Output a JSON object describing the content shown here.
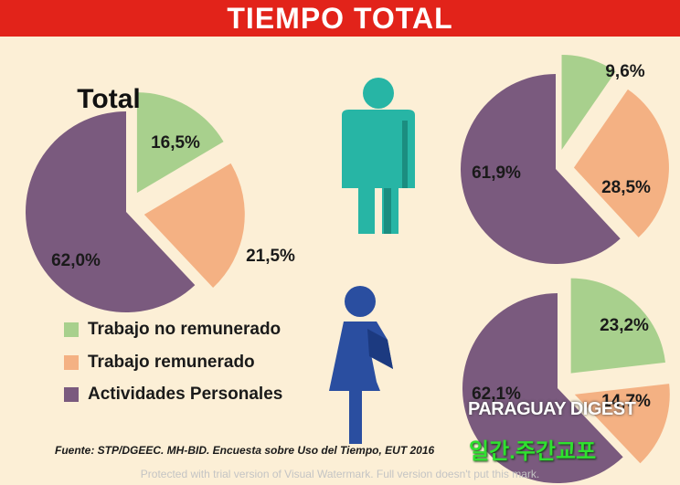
{
  "header": {
    "title": "TIEMPO TOTAL"
  },
  "chart_data": [
    {
      "type": "pie",
      "title": "Total",
      "labels": [
        "Trabajo no remunerado",
        "Trabajo remunerado",
        "Actividades Personales"
      ],
      "values": [
        16.5,
        21.5,
        62.0
      ],
      "value_labels": [
        "16,5%",
        "21,5%",
        "62,0%"
      ]
    },
    {
      "type": "pie",
      "title": "",
      "labels": [
        "Trabajo no remunerado",
        "Trabajo remunerado",
        "Actividades Personales"
      ],
      "values": [
        9.6,
        28.5,
        61.9
      ],
      "value_labels": [
        "9,6%",
        "28,5%",
        "61,9%"
      ]
    },
    {
      "type": "pie",
      "title": "",
      "labels": [
        "Trabajo no remunerado",
        "Trabajo remunerado",
        "Actividades Personales"
      ],
      "values": [
        23.2,
        14.7,
        62.1
      ],
      "value_labels": [
        "23,2%",
        "14,7%",
        "62,1%"
      ]
    }
  ],
  "legend": {
    "items": [
      {
        "label": "Trabajo no remunerado",
        "color": "#a8d08d"
      },
      {
        "label": "Trabajo remunerado",
        "color": "#f4b183"
      },
      {
        "label": "Actividades Personales",
        "color": "#7a5a7e"
      }
    ]
  },
  "source": "Fuente: STP/DGEEC. MH-BID. Encuesta sobre Uso del Tiempo, EUT 2016",
  "watermarks": {
    "brand": "PARAGUAY DIGEST",
    "korean": "일간.주간교포",
    "trial": "Protected with trial version of Visual Watermark. Full version doesn't put this mark."
  },
  "icons": {
    "male": "man-icon",
    "female": "woman-icon"
  },
  "colors": {
    "banner": "#e2231a",
    "background": "#fcefd6",
    "male_icon": "#27b5a5",
    "female_icon": "#2a4ea0"
  }
}
